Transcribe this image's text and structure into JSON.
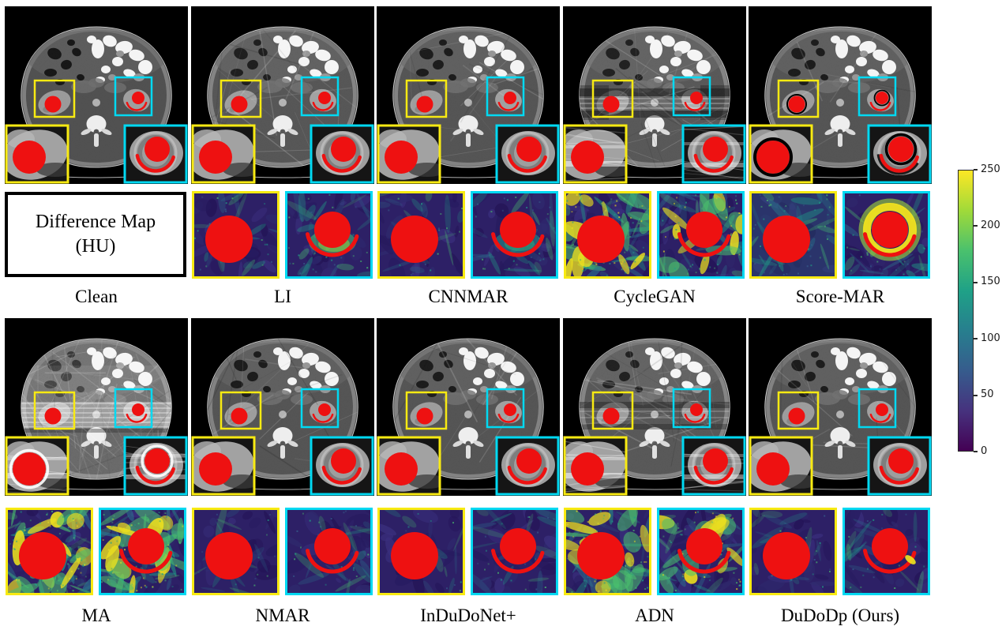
{
  "diff_box": {
    "line1": "Difference Map",
    "line2": "(HU)"
  },
  "colorbar": {
    "min": 0,
    "max": 250,
    "ticks": [
      250,
      200,
      150,
      100,
      50,
      0
    ],
    "colormap": "viridis"
  },
  "colors": {
    "roi_yellow": "#f8ea12",
    "roi_cyan": "#00d9f2",
    "metal_red": "#ee1111",
    "figure_background": "#ffffff",
    "ct_background": "#000000",
    "viridis_stops": [
      "#440154",
      "#46327e",
      "#365c8d",
      "#277f8e",
      "#1fa187",
      "#4ac16d",
      "#a0da39",
      "#fde725"
    ]
  },
  "top_row": {
    "panels": [
      {
        "label": "Clean",
        "ct": {
          "streaks": 0,
          "grain": 0.06,
          "band": "none",
          "ring": false,
          "glow": false,
          "insetBand": false
        },
        "diff": null
      },
      {
        "label": "LI",
        "ct": {
          "streaks": 1.2,
          "grain": 0.09,
          "band": "none",
          "ring": false,
          "glow": false,
          "insetBand": false
        },
        "diff": {
          "yellow": {
            "level": 1.1
          },
          "cyan": {
            "level": 1.5,
            "arc": true,
            "halo": "green"
          }
        }
      },
      {
        "label": "CNNMAR",
        "ct": {
          "streaks": 0.9,
          "grain": 0.08,
          "band": "none",
          "ring": false,
          "glow": false,
          "insetBand": false
        },
        "diff": {
          "yellow": {
            "level": 1.0
          },
          "cyan": {
            "level": 1.3,
            "arc": true,
            "halo": "teal"
          }
        }
      },
      {
        "label": "CycleGAN",
        "ct": {
          "streaks": 1.6,
          "grain": 0.1,
          "band": "dark",
          "ring": false,
          "glow": false,
          "insetBand": true
        },
        "diff": {
          "yellow": {
            "level": 3.0,
            "patches": true
          },
          "cyan": {
            "level": 2.4,
            "arc": true,
            "patches": true
          }
        }
      },
      {
        "label": "Score-MAR",
        "ct": {
          "streaks": 0.5,
          "grain": 0.08,
          "band": "none",
          "ring": true,
          "glow": false,
          "insetBand": false
        },
        "diff": {
          "yellow": {
            "level": 2.0,
            "wash": true
          },
          "cyan": {
            "level": 2.0,
            "arc": true,
            "halo": "yellow"
          }
        }
      }
    ]
  },
  "bottom_row": {
    "panels": [
      {
        "label": "MA",
        "ct": {
          "streaks": 3.5,
          "grain": 0.2,
          "band": "bright",
          "ring": false,
          "glow": true,
          "insetBand": true
        },
        "diff": {
          "yellow": {
            "level": 3.6,
            "patches": true
          },
          "cyan": {
            "level": 3.4,
            "arc": true,
            "patches": true
          }
        }
      },
      {
        "label": "NMAR",
        "ct": {
          "streaks": 1.0,
          "grain": 0.08,
          "band": "none",
          "ring": false,
          "glow": false,
          "insetBand": false
        },
        "diff": {
          "yellow": {
            "level": 0.9
          },
          "cyan": {
            "level": 1.1,
            "arc": true
          }
        }
      },
      {
        "label": "InDuDoNet+",
        "ct": {
          "streaks": 0.7,
          "grain": 0.08,
          "band": "none",
          "ring": false,
          "glow": false,
          "insetBand": false
        },
        "diff": {
          "yellow": {
            "level": 0.6
          },
          "cyan": {
            "level": 1.0,
            "arc": true
          }
        }
      },
      {
        "label": "ADN",
        "ct": {
          "streaks": 1.8,
          "grain": 0.1,
          "band": "dark2",
          "ring": false,
          "glow": false,
          "insetBand": true
        },
        "diff": {
          "yellow": {
            "level": 2.9,
            "patches": true
          },
          "cyan": {
            "level": 2.3,
            "arc": true,
            "patches": true
          }
        }
      },
      {
        "label": "DuDoDp (Ours)",
        "ct": {
          "streaks": 0.6,
          "grain": 0.08,
          "band": "none",
          "ring": false,
          "glow": false,
          "insetBand": false
        },
        "diff": {
          "yellow": {
            "level": 0.8
          },
          "cyan": {
            "level": 1.0,
            "arc": true,
            "hotspot": true
          }
        }
      }
    ]
  }
}
